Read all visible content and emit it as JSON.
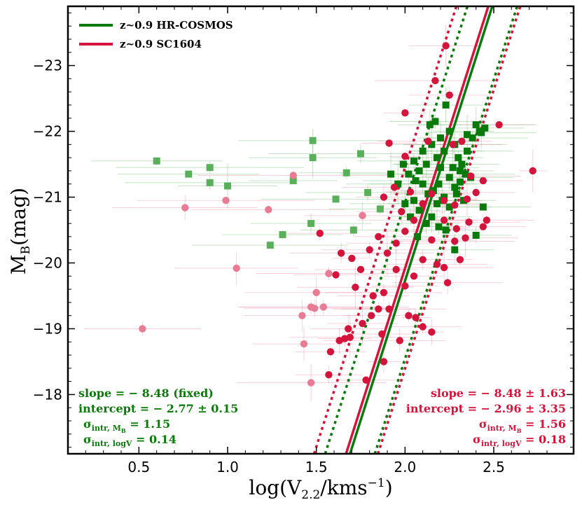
{
  "chart_data": {
    "type": "scatter",
    "xlabel": "log(V",
    "xlabel_sub": "2.2",
    "xlabel_tail": "/kms",
    "xlabel_sup": "−1",
    "xlabel_close": ")",
    "ylabel": "M",
    "ylabel_sub": "B",
    "ylabel_tail": "(mag)",
    "xlim": [
      0.1,
      2.95
    ],
    "ylim": [
      -17.1,
      -23.9
    ],
    "y_inverted": true,
    "x_ticks": [
      {
        "value": 0.5,
        "label": "0.5"
      },
      {
        "value": 1.0,
        "label": "1.0"
      },
      {
        "value": 1.5,
        "label": "1.5"
      },
      {
        "value": 2.0,
        "label": "2.0"
      },
      {
        "value": 2.5,
        "label": "2.5"
      }
    ],
    "y_ticks": [
      {
        "value": -18,
        "label": "−18"
      },
      {
        "value": -19,
        "label": "−19"
      },
      {
        "value": -20,
        "label": "−20"
      },
      {
        "value": -21,
        "label": "−21"
      },
      {
        "value": -22,
        "label": "−22"
      },
      {
        "value": -23,
        "label": "−23"
      }
    ],
    "grid": false,
    "legend_position": "top-left",
    "legend": [
      {
        "label": "z~0.9 HR-COSMOS",
        "color": "#0a7a0a"
      },
      {
        "label": "z~0.9 SC1604",
        "color": "#d4143c"
      }
    ],
    "series": [
      {
        "name": "z~0.9 HR-COSMOS",
        "marker": "square",
        "color": "#0a7a0a",
        "faded_color": "#5ab05a",
        "points": [
          [
            2.02,
            -21.35
          ],
          [
            2.05,
            -21.55
          ],
          [
            2.08,
            -21.4
          ],
          [
            2.1,
            -21.7
          ],
          [
            2.12,
            -21.5
          ],
          [
            2.15,
            -21.8
          ],
          [
            2.18,
            -21.6
          ],
          [
            2.2,
            -21.9
          ],
          [
            2.22,
            -21.7
          ],
          [
            2.25,
            -22.0
          ],
          [
            2.28,
            -21.8
          ],
          [
            2.3,
            -21.6
          ],
          [
            2.32,
            -21.5
          ],
          [
            2.35,
            -21.7
          ],
          [
            2.38,
            -21.9
          ],
          [
            2.4,
            -22.1
          ],
          [
            2.42,
            -22.0
          ],
          [
            2.45,
            -22.05
          ],
          [
            2.17,
            -22.15
          ],
          [
            2.23,
            -22.4
          ],
          [
            2.06,
            -21.25
          ],
          [
            2.1,
            -21.2
          ],
          [
            2.13,
            -21.05
          ],
          [
            2.16,
            -21.1
          ],
          [
            2.19,
            -21.2
          ],
          [
            2.22,
            -21.0
          ],
          [
            2.25,
            -21.3
          ],
          [
            2.28,
            -21.15
          ],
          [
            2.31,
            -21.4
          ],
          [
            2.34,
            -21.35
          ],
          [
            2.37,
            -21.3
          ],
          [
            2.05,
            -20.95
          ],
          [
            2.08,
            -20.8
          ],
          [
            2.12,
            -20.6
          ],
          [
            2.15,
            -20.7
          ],
          [
            2.18,
            -20.9
          ],
          [
            2.21,
            -20.95
          ],
          [
            2.25,
            -20.85
          ],
          [
            2.29,
            -21.05
          ],
          [
            2.33,
            -20.95
          ],
          [
            1.92,
            -21.35
          ],
          [
            1.96,
            -21.2
          ],
          [
            2.0,
            -20.9
          ],
          [
            1.99,
            -21.5
          ],
          [
            2.19,
            -20.55
          ],
          [
            2.23,
            -20.5
          ],
          [
            2.07,
            -20.4
          ],
          [
            2.03,
            -20.7
          ],
          [
            2.28,
            -20.2
          ],
          [
            2.4,
            -20.42
          ],
          [
            2.44,
            -20.85
          ],
          [
            2.14,
            -22.1
          ],
          [
            2.2,
            -21.45
          ],
          [
            2.27,
            -21.45
          ],
          [
            2.35,
            -21.95
          ],
          [
            2.43,
            -21.98
          ],
          [
            2.31,
            -21.23
          ]
        ],
        "faded_points": [
          [
            0.6,
            -21.55
          ],
          [
            0.78,
            -21.35
          ],
          [
            0.9,
            -21.45
          ],
          [
            0.9,
            -21.22
          ],
          [
            1.0,
            -21.17
          ],
          [
            1.24,
            -20.27
          ],
          [
            1.31,
            -20.43
          ],
          [
            1.37,
            -21.25
          ],
          [
            1.47,
            -20.6
          ],
          [
            1.48,
            -21.6
          ],
          [
            1.48,
            -21.86
          ],
          [
            1.61,
            -20.97
          ],
          [
            1.67,
            -21.37
          ],
          [
            1.71,
            -20.5
          ],
          [
            1.75,
            -21.66
          ],
          [
            1.79,
            -21.07
          ],
          [
            1.86,
            -20.82
          ]
        ]
      },
      {
        "name": "z~0.9 SC1604",
        "marker": "circle",
        "color": "#d4143c",
        "faded_color": "#e87c94",
        "points": [
          [
            2.23,
            -23.3
          ],
          [
            2.17,
            -22.77
          ],
          [
            2.25,
            -22.55
          ],
          [
            2.0,
            -22.28
          ],
          [
            2.53,
            -22.1
          ],
          [
            2.72,
            -21.4
          ],
          [
            1.91,
            -21.82
          ],
          [
            2.13,
            -21.85
          ],
          [
            2.32,
            -21.85
          ],
          [
            1.94,
            -21.15
          ],
          [
            1.88,
            -21.0
          ],
          [
            1.98,
            -20.78
          ],
          [
            2.0,
            -20.48
          ],
          [
            2.05,
            -20.65
          ],
          [
            2.1,
            -20.9
          ],
          [
            2.15,
            -21.05
          ],
          [
            2.22,
            -20.95
          ],
          [
            2.28,
            -20.88
          ],
          [
            2.35,
            -20.97
          ],
          [
            2.4,
            -21.07
          ],
          [
            2.46,
            -20.65
          ],
          [
            2.44,
            -20.55
          ],
          [
            2.36,
            -20.62
          ],
          [
            2.29,
            -20.52
          ],
          [
            2.22,
            -20.65
          ],
          [
            2.15,
            -20.35
          ],
          [
            2.1,
            -20.05
          ],
          [
            2.05,
            -19.8
          ],
          [
            2.0,
            -19.65
          ],
          [
            1.95,
            -19.9
          ],
          [
            1.9,
            -20.15
          ],
          [
            1.85,
            -20.4
          ],
          [
            1.8,
            -20.2
          ],
          [
            1.75,
            -19.9
          ],
          [
            1.72,
            -19.63
          ],
          [
            1.7,
            -20.07
          ],
          [
            1.64,
            -20.15
          ],
          [
            1.61,
            -19.82
          ],
          [
            1.52,
            -20.45
          ],
          [
            1.58,
            -18.65
          ],
          [
            1.57,
            -18.3
          ],
          [
            1.63,
            -18.82
          ],
          [
            1.66,
            -18.85
          ],
          [
            1.69,
            -18.87
          ],
          [
            1.78,
            -18.22
          ],
          [
            1.76,
            -19.08
          ],
          [
            1.81,
            -19.2
          ],
          [
            1.82,
            -19.5
          ],
          [
            1.85,
            -19.3
          ],
          [
            1.88,
            -19.55
          ],
          [
            1.91,
            -19.3
          ],
          [
            1.97,
            -18.82
          ],
          [
            2.02,
            -19.2
          ],
          [
            2.06,
            -19.17
          ],
          [
            2.1,
            -19.03
          ],
          [
            2.15,
            -18.95
          ],
          [
            2.22,
            -19.93
          ],
          [
            2.24,
            -19.7
          ],
          [
            2.18,
            -19.98
          ],
          [
            2.28,
            -20.33
          ],
          [
            2.31,
            -20.05
          ],
          [
            1.68,
            -19.0
          ],
          [
            1.88,
            -18.5
          ],
          [
            1.87,
            -18.92
          ],
          [
            1.95,
            -20.3
          ],
          [
            2.0,
            -21.62
          ],
          [
            2.37,
            -21.32
          ],
          [
            2.34,
            -20.38
          ],
          [
            2.27,
            -21.8
          ],
          [
            2.44,
            -21.25
          ],
          [
            2.03,
            -21.08
          ]
        ],
        "faded_points": [
          [
            0.52,
            -19.0
          ],
          [
            0.76,
            -20.84
          ],
          [
            0.99,
            -20.95
          ],
          [
            1.05,
            -19.92
          ],
          [
            1.23,
            -20.81
          ],
          [
            1.37,
            -21.33
          ],
          [
            1.42,
            -19.2
          ],
          [
            1.43,
            -18.77
          ],
          [
            1.47,
            -19.33
          ],
          [
            1.49,
            -19.31
          ],
          [
            1.47,
            -18.18
          ],
          [
            1.5,
            -19.55
          ],
          [
            1.54,
            -19.33
          ],
          [
            1.57,
            -19.84
          ],
          [
            1.76,
            -20.72
          ]
        ]
      }
    ],
    "fit_lines": [
      {
        "name": "z~0.9 HR-COSMOS",
        "color": "#0a7a0a",
        "slope": -8.48,
        "intercept": -2.77,
        "sigma_logV": 0.14,
        "style": "solid"
      },
      {
        "name": "z~0.9 SC1604",
        "color": "#d4143c",
        "slope": -8.48,
        "intercept": -2.96,
        "sigma_logV": 0.18,
        "style": "solid"
      }
    ],
    "annotations": {
      "green": {
        "slope": "slope = − 8.48 (fixed)",
        "intercept": "intercept = − 2.77 ± 0.15",
        "sigma_mb_prefix": "σ",
        "sigma_mb_sub": "intr, M",
        "sigma_mb_subsub": "B",
        "sigma_mb_value": " = 1.15",
        "sigma_logv_prefix": "σ",
        "sigma_logv_sub": "intr, logV",
        "sigma_logv_value": " = 0.14"
      },
      "red": {
        "slope": "slope = − 8.48 ± 1.63",
        "intercept": "intercept = − 2.96 ± 3.35",
        "sigma_mb_prefix": "σ",
        "sigma_mb_sub": "intr, M",
        "sigma_mb_subsub": "B",
        "sigma_mb_value": " = 1.56",
        "sigma_logv_prefix": "σ",
        "sigma_logv_sub": "intr, logV",
        "sigma_logv_value": " = 0.18"
      }
    }
  }
}
